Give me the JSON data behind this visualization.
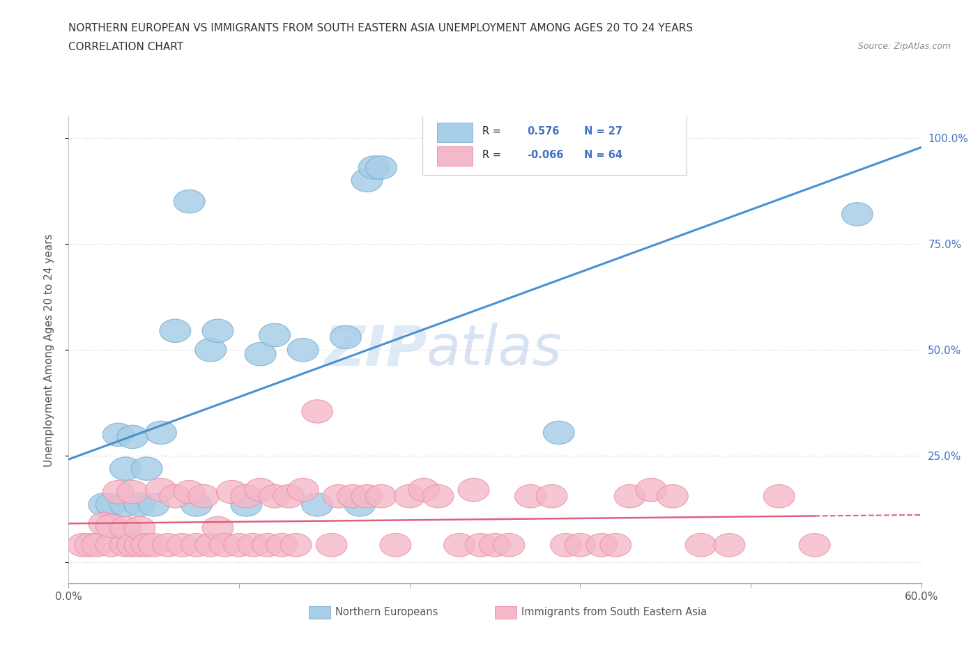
{
  "title_line1": "NORTHERN EUROPEAN VS IMMIGRANTS FROM SOUTH EASTERN ASIA UNEMPLOYMENT AMONG AGES 20 TO 24 YEARS",
  "title_line2": "CORRELATION CHART",
  "source_text": "Source: ZipAtlas.com",
  "ylabel": "Unemployment Among Ages 20 to 24 years",
  "watermark_zip": "ZIP",
  "watermark_atlas": "atlas",
  "blue_R": 0.576,
  "blue_N": 27,
  "pink_R": -0.066,
  "pink_N": 64,
  "blue_marker_color": "#A8CEE8",
  "blue_marker_edge": "#7AAFD0",
  "pink_marker_color": "#F4B8C8",
  "pink_marker_edge": "#E890A8",
  "blue_line_color": "#4A90D0",
  "pink_line_color": "#E0607A",
  "legend_r_color": "#4472C4",
  "xlim": [
    0.0,
    0.6
  ],
  "ylim": [
    -0.05,
    1.05
  ],
  "blue_scatter_x": [
    0.025,
    0.03,
    0.035,
    0.04,
    0.04,
    0.045,
    0.05,
    0.055,
    0.06,
    0.065,
    0.075,
    0.085,
    0.09,
    0.1,
    0.105,
    0.125,
    0.135,
    0.145,
    0.165,
    0.175,
    0.195,
    0.205,
    0.21,
    0.215,
    0.22,
    0.345,
    0.555
  ],
  "blue_scatter_y": [
    0.135,
    0.135,
    0.3,
    0.135,
    0.22,
    0.295,
    0.135,
    0.22,
    0.135,
    0.305,
    0.545,
    0.85,
    0.135,
    0.5,
    0.545,
    0.135,
    0.49,
    0.535,
    0.5,
    0.135,
    0.53,
    0.135,
    0.9,
    0.93,
    0.93,
    0.305,
    0.82
  ],
  "pink_scatter_x": [
    0.01,
    0.015,
    0.02,
    0.025,
    0.03,
    0.03,
    0.035,
    0.04,
    0.04,
    0.045,
    0.045,
    0.05,
    0.05,
    0.055,
    0.06,
    0.065,
    0.07,
    0.075,
    0.08,
    0.085,
    0.09,
    0.095,
    0.1,
    0.105,
    0.11,
    0.115,
    0.12,
    0.125,
    0.13,
    0.135,
    0.14,
    0.145,
    0.15,
    0.155,
    0.16,
    0.165,
    0.175,
    0.185,
    0.19,
    0.2,
    0.21,
    0.22,
    0.23,
    0.24,
    0.25,
    0.26,
    0.275,
    0.285,
    0.29,
    0.3,
    0.31,
    0.325,
    0.34,
    0.35,
    0.36,
    0.375,
    0.385,
    0.395,
    0.41,
    0.425,
    0.445,
    0.465,
    0.5,
    0.525
  ],
  "pink_scatter_y": [
    0.04,
    0.04,
    0.04,
    0.09,
    0.04,
    0.085,
    0.165,
    0.04,
    0.08,
    0.04,
    0.165,
    0.04,
    0.08,
    0.04,
    0.04,
    0.17,
    0.04,
    0.155,
    0.04,
    0.165,
    0.04,
    0.155,
    0.04,
    0.08,
    0.04,
    0.165,
    0.04,
    0.155,
    0.04,
    0.17,
    0.04,
    0.155,
    0.04,
    0.155,
    0.04,
    0.17,
    0.355,
    0.04,
    0.155,
    0.155,
    0.155,
    0.155,
    0.04,
    0.155,
    0.17,
    0.155,
    0.04,
    0.17,
    0.04,
    0.04,
    0.04,
    0.155,
    0.155,
    0.04,
    0.04,
    0.04,
    0.04,
    0.155,
    0.17,
    0.155,
    0.04,
    0.04,
    0.155,
    0.04
  ],
  "background_color": "#FFFFFF",
  "grid_color": "#CCCCCC"
}
